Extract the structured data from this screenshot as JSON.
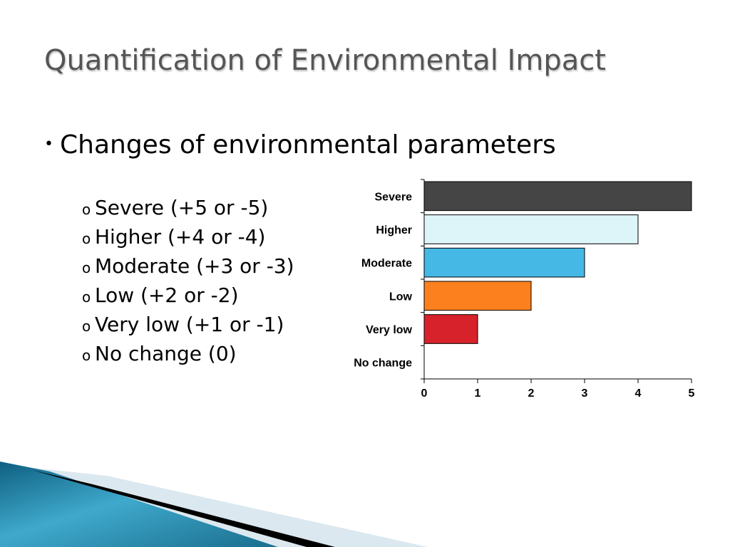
{
  "slide": {
    "title": "Quantification of Environmental Impact",
    "bullet": "Changes of environmental parameters",
    "bullet_marker": "•",
    "sub_marker": "o",
    "sub_items": [
      "Severe (+5 or -5)",
      "Higher (+4 or -4)",
      "Moderate (+3 or -3)",
      "Low (+2 or -2)",
      "Very low (+1 or -1)",
      "No change (0)"
    ]
  },
  "chart_data": {
    "type": "bar",
    "orientation": "horizontal",
    "categories": [
      "Severe",
      "Higher",
      "Moderate",
      "Low",
      "Very low",
      "No change"
    ],
    "values": [
      5,
      4,
      3,
      2,
      1,
      0
    ],
    "colors": [
      "#454545",
      "#ddf4f8",
      "#45b8e6",
      "#fd801e",
      "#d8222b",
      "#ffffff"
    ],
    "xlim": [
      0,
      5
    ],
    "xticks": [
      0,
      1,
      2,
      3,
      4,
      5
    ],
    "title": "",
    "xlabel": "",
    "ylabel": "",
    "grid": false,
    "legend": "none"
  },
  "colors": {
    "title": "#555555",
    "deco_dark": "#1a6e8e",
    "deco_light": "#dbe8ef"
  }
}
